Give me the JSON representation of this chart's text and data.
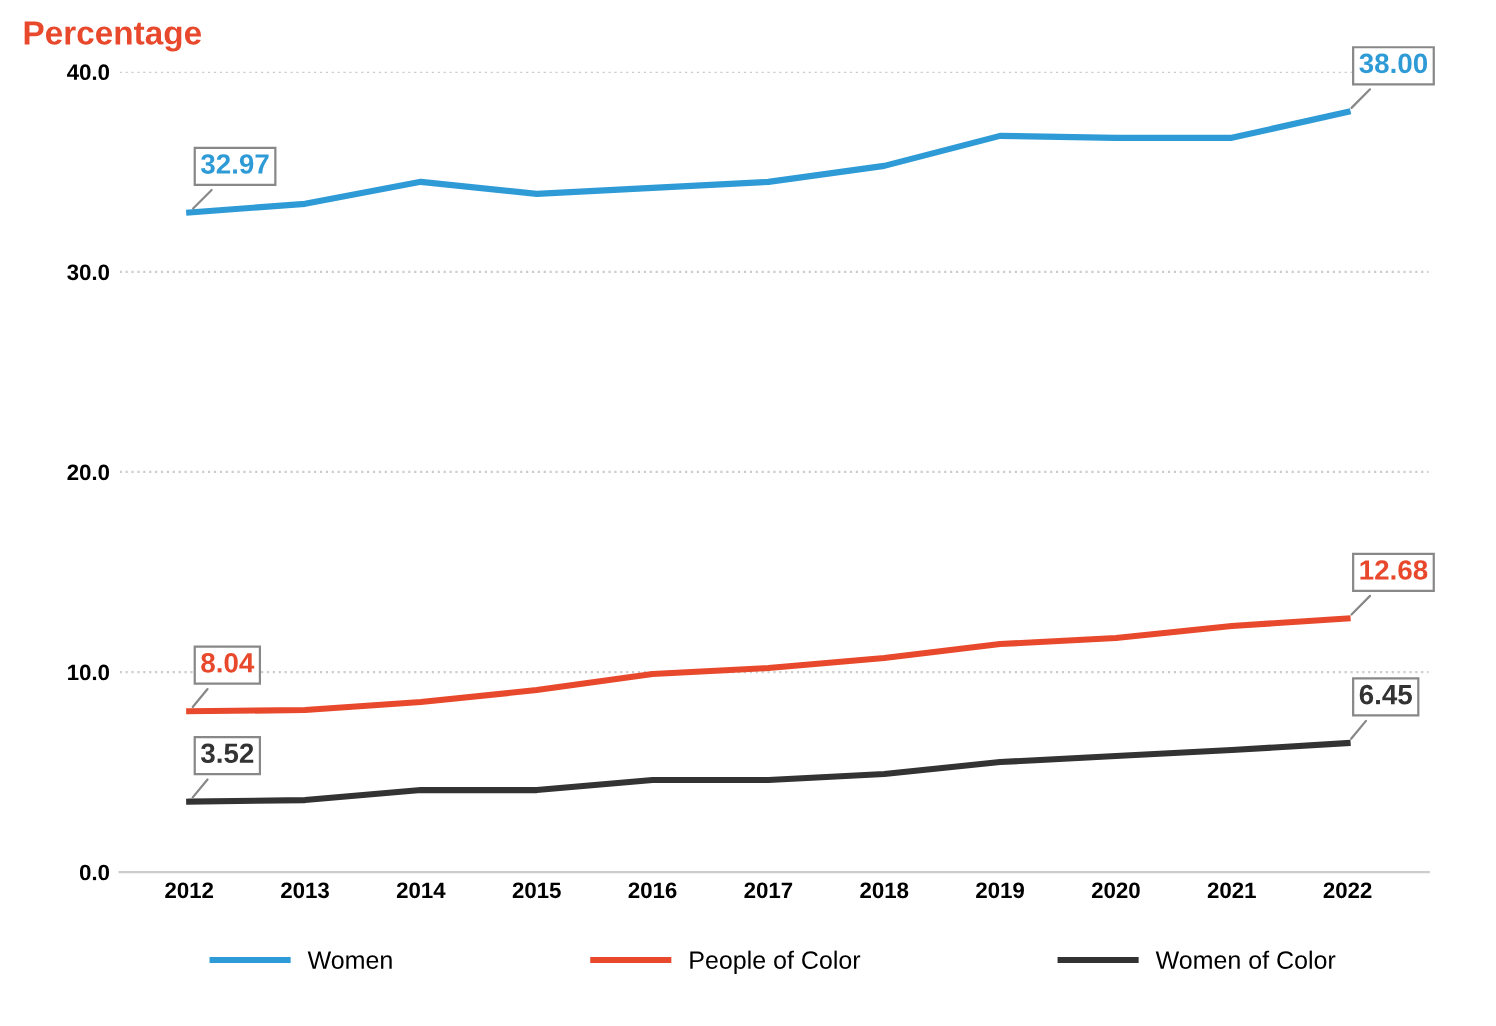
{
  "chart_data": {
    "type": "line",
    "ylabel": "Percentage",
    "categories": [
      "2012",
      "2013",
      "2014",
      "2015",
      "2016",
      "2017",
      "2018",
      "2019",
      "2020",
      "2021",
      "2022"
    ],
    "ylim": [
      0,
      40
    ],
    "yticks": [
      {
        "value": 0,
        "label": "0.0"
      },
      {
        "value": 10,
        "label": "10.0"
      },
      {
        "value": 20,
        "label": "20.0"
      },
      {
        "value": 30,
        "label": "30.0"
      },
      {
        "value": 40,
        "label": "40.0"
      }
    ],
    "grid": "y",
    "legend": "bottom",
    "marker": "none",
    "series": [
      {
        "name": "Women",
        "color": "#2e9bd6",
        "values": [
          32.97,
          33.4,
          34.5,
          33.9,
          34.2,
          34.5,
          35.3,
          36.8,
          36.7,
          36.7,
          38.0
        ],
        "value_labels": [
          "32.97",
          null,
          null,
          null,
          null,
          null,
          null,
          null,
          null,
          null,
          "38.00"
        ]
      },
      {
        "name": "People of Color",
        "color": "#e8492c",
        "values": [
          8.04,
          8.1,
          8.5,
          9.1,
          9.9,
          10.2,
          10.7,
          11.4,
          11.7,
          12.3,
          12.68
        ],
        "value_labels": [
          "8.04",
          null,
          null,
          null,
          null,
          null,
          null,
          null,
          null,
          null,
          "12.68"
        ]
      },
      {
        "name": "Women of Color",
        "color": "#333333",
        "values": [
          3.52,
          3.6,
          4.1,
          4.1,
          4.6,
          4.6,
          4.9,
          5.5,
          5.8,
          6.1,
          6.45
        ],
        "value_labels": [
          "3.52",
          null,
          null,
          null,
          null,
          null,
          null,
          null,
          null,
          null,
          "6.45"
        ]
      }
    ]
  }
}
